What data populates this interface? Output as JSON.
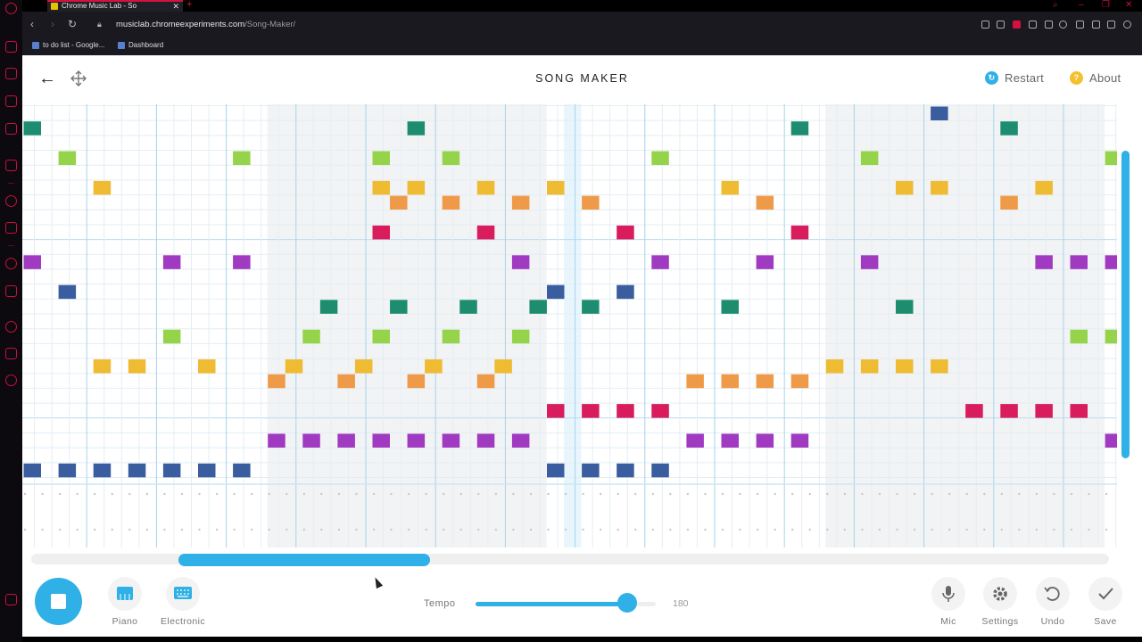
{
  "browser": {
    "tab_title": "Chrome Music Lab - So",
    "tab_close": "✕",
    "new_tab": "+",
    "url_domain": "musiclab.chromeexperiments.com",
    "url_path": "/Song-Maker/",
    "bookmarks": [
      {
        "label": "to do list - Google..."
      },
      {
        "label": "Dashboard"
      }
    ],
    "accent_color": "#d4123f"
  },
  "app": {
    "title": "SONG MAKER",
    "restart_label": "Restart",
    "about_label": "About",
    "restart_icon_glyph": "↻",
    "about_icon_glyph": "?"
  },
  "grid": {
    "columns": 64,
    "rows": 24,
    "melodic_rows": 15,
    "percussion_rows": 2,
    "visible_columns": 31.5,
    "shaded_ranges": [
      [
        7,
        15
      ],
      [
        23,
        31
      ]
    ],
    "playhead_column": 15.5,
    "notes": [
      [
        0,
        1,
        "#1e8d6f"
      ],
      [
        11,
        1,
        "#1e8d6f"
      ],
      [
        22,
        1,
        "#1e8d6f"
      ],
      [
        28,
        1,
        "#1e8d6f"
      ],
      [
        26,
        0,
        "#3a5d9f"
      ],
      [
        1,
        3,
        "#95d44a"
      ],
      [
        6,
        3,
        "#95d44a"
      ],
      [
        10,
        3,
        "#95d44a"
      ],
      [
        12,
        3,
        "#95d44a"
      ],
      [
        18,
        3,
        "#95d44a"
      ],
      [
        24,
        3,
        "#95d44a"
      ],
      [
        31,
        3,
        "#95d44a"
      ],
      [
        2,
        5,
        "#eebb33"
      ],
      [
        10,
        5,
        "#eebb33"
      ],
      [
        11,
        5,
        "#eebb33"
      ],
      [
        13,
        5,
        "#eebb33"
      ],
      [
        15,
        5,
        "#eebb33"
      ],
      [
        20,
        5,
        "#eebb33"
      ],
      [
        25,
        5,
        "#eebb33"
      ],
      [
        26,
        5,
        "#eebb33"
      ],
      [
        29,
        5,
        "#eebb33"
      ],
      [
        10.5,
        6,
        "#ee9a48"
      ],
      [
        12,
        6,
        "#ee9a48"
      ],
      [
        14,
        6,
        "#ee9a48"
      ],
      [
        16,
        6,
        "#ee9a48"
      ],
      [
        21,
        6,
        "#ee9a48"
      ],
      [
        28,
        6,
        "#ee9a48"
      ],
      [
        10,
        8,
        "#d91c5c"
      ],
      [
        13,
        8,
        "#d91c5c"
      ],
      [
        17,
        8,
        "#d91c5c"
      ],
      [
        22,
        8,
        "#d91c5c"
      ],
      [
        0,
        10,
        "#a03ac0"
      ],
      [
        4,
        10,
        "#a03ac0"
      ],
      [
        6,
        10,
        "#a03ac0"
      ],
      [
        14,
        10,
        "#a03ac0"
      ],
      [
        18,
        10,
        "#a03ac0"
      ],
      [
        21,
        10,
        "#a03ac0"
      ],
      [
        24,
        10,
        "#a03ac0"
      ],
      [
        29,
        10,
        "#a03ac0"
      ],
      [
        30,
        10,
        "#a03ac0"
      ],
      [
        31,
        10,
        "#a03ac0"
      ],
      [
        1,
        12,
        "#3a5d9f"
      ],
      [
        15,
        12,
        "#3a5d9f"
      ],
      [
        17,
        12,
        "#3a5d9f"
      ],
      [
        8.5,
        13,
        "#1e8d6f"
      ],
      [
        10.5,
        13,
        "#1e8d6f"
      ],
      [
        12.5,
        13,
        "#1e8d6f"
      ],
      [
        14.5,
        13,
        "#1e8d6f"
      ],
      [
        16,
        13,
        "#1e8d6f"
      ],
      [
        20,
        13,
        "#1e8d6f"
      ],
      [
        25,
        13,
        "#1e8d6f"
      ],
      [
        4,
        15,
        "#95d44a"
      ],
      [
        8,
        15,
        "#95d44a"
      ],
      [
        10,
        15,
        "#95d44a"
      ],
      [
        12,
        15,
        "#95d44a"
      ],
      [
        14,
        15,
        "#95d44a"
      ],
      [
        30,
        15,
        "#95d44a"
      ],
      [
        31,
        15,
        "#95d44a"
      ],
      [
        2,
        17,
        "#eebb33"
      ],
      [
        3,
        17,
        "#eebb33"
      ],
      [
        5,
        17,
        "#eebb33"
      ],
      [
        7.5,
        17,
        "#eebb33"
      ],
      [
        9.5,
        17,
        "#eebb33"
      ],
      [
        11.5,
        17,
        "#eebb33"
      ],
      [
        13.5,
        17,
        "#eebb33"
      ],
      [
        23,
        17,
        "#eebb33"
      ],
      [
        24,
        17,
        "#eebb33"
      ],
      [
        25,
        17,
        "#eebb33"
      ],
      [
        26,
        17,
        "#eebb33"
      ],
      [
        7,
        18,
        "#ee9a48"
      ],
      [
        9,
        18,
        "#ee9a48"
      ],
      [
        11,
        18,
        "#ee9a48"
      ],
      [
        13,
        18,
        "#ee9a48"
      ],
      [
        19,
        18,
        "#ee9a48"
      ],
      [
        20,
        18,
        "#ee9a48"
      ],
      [
        21,
        18,
        "#ee9a48"
      ],
      [
        22,
        18,
        "#ee9a48"
      ],
      [
        15,
        20,
        "#d91c5c"
      ],
      [
        16,
        20,
        "#d91c5c"
      ],
      [
        17,
        20,
        "#d91c5c"
      ],
      [
        18,
        20,
        "#d91c5c"
      ],
      [
        27,
        20,
        "#d91c5c"
      ],
      [
        28,
        20,
        "#d91c5c"
      ],
      [
        29,
        20,
        "#d91c5c"
      ],
      [
        30,
        20,
        "#d91c5c"
      ],
      [
        7,
        22,
        "#a03ac0"
      ],
      [
        8,
        22,
        "#a03ac0"
      ],
      [
        9,
        22,
        "#a03ac0"
      ],
      [
        10,
        22,
        "#a03ac0"
      ],
      [
        11,
        22,
        "#a03ac0"
      ],
      [
        12,
        22,
        "#a03ac0"
      ],
      [
        13,
        22,
        "#a03ac0"
      ],
      [
        14,
        22,
        "#a03ac0"
      ],
      [
        19,
        22,
        "#a03ac0"
      ],
      [
        20,
        22,
        "#a03ac0"
      ],
      [
        21,
        22,
        "#a03ac0"
      ],
      [
        22,
        22,
        "#a03ac0"
      ],
      [
        31,
        22,
        "#a03ac0"
      ],
      [
        0,
        24,
        "#3a5d9f"
      ],
      [
        1,
        24,
        "#3a5d9f"
      ],
      [
        2,
        24,
        "#3a5d9f"
      ],
      [
        3,
        24,
        "#3a5d9f"
      ],
      [
        4,
        24,
        "#3a5d9f"
      ],
      [
        5,
        24,
        "#3a5d9f"
      ],
      [
        6,
        24,
        "#3a5d9f"
      ],
      [
        15,
        24,
        "#3a5d9f"
      ],
      [
        16,
        24,
        "#3a5d9f"
      ],
      [
        17,
        24,
        "#3a5d9f"
      ],
      [
        18,
        24,
        "#3a5d9f"
      ]
    ]
  },
  "controls": {
    "piano_label": "Piano",
    "electronic_label": "Electronic",
    "tempo_label": "Tempo",
    "tempo_value": "180",
    "tempo_fraction": 0.84,
    "horizontal_scroll_fraction": 0.12,
    "mic_label": "Mic",
    "settings_label": "Settings",
    "undo_label": "Undo",
    "save_label": "Save",
    "mic_icon": "mic-icon",
    "settings_icon": "gear-icon",
    "undo_icon": "undo-icon",
    "save_icon": "check-icon",
    "accent_color": "#2fb0e6"
  }
}
